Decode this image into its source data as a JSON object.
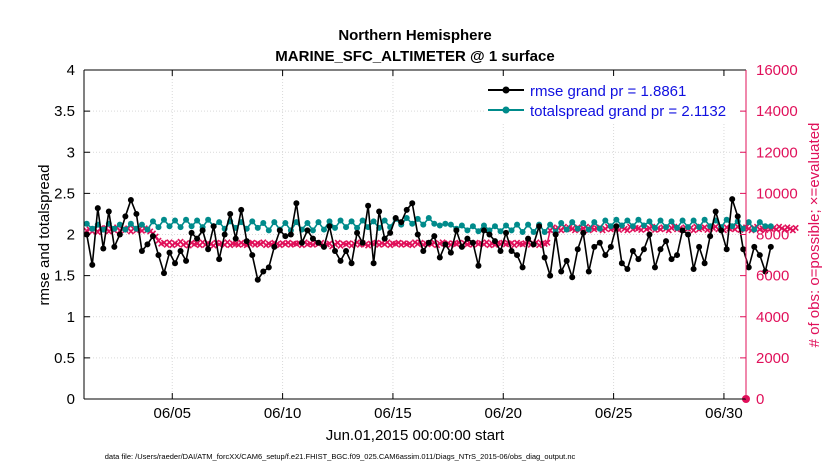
{
  "chart_data": {
    "type": "line",
    "title": "Northern Hemisphere",
    "subtitle": "MARINE_SFC_ALTIMETER @ 1 surface",
    "xlabel": "Jun.01,2015 00:00:00 start",
    "ylabel": "rmse and totalspread",
    "ylabel_right": "# of obs: o=possible; ×=evaluated",
    "footer": "data file: /Users/raeder/DAI/ATM_forcXX/CAM6_setup/f.e21.FHIST_BGC.f09_025.CAM6assim.011/Diags_NTrS_2015-06/obs_diag_output.nc",
    "x_ticks": [
      "06/05",
      "06/10",
      "06/15",
      "06/20",
      "06/25",
      "06/30"
    ],
    "x_tick_days": [
      5,
      10,
      15,
      20,
      25,
      30
    ],
    "xlim_days": [
      1,
      31
    ],
    "y_ticks": [
      "0",
      "0.5",
      "1",
      "1.5",
      "2",
      "2.5",
      "3",
      "3.5",
      "4"
    ],
    "ylim": [
      0,
      4
    ],
    "y2_ticks": [
      "0",
      "2000",
      "4000",
      "6000",
      "8000",
      "10000",
      "12000",
      "14000",
      "16000"
    ],
    "y2lim": [
      0,
      16000
    ],
    "grid": true,
    "legend_position": "top-right",
    "colors": {
      "rmse": "#000000",
      "spread": "#008b8b",
      "obs": "#e0105a"
    },
    "series": [
      {
        "name": "rmse grand pr = 1.8861",
        "key": "rmse",
        "start_day": 1.125,
        "step_day": 0.25,
        "values": [
          2.0,
          1.63,
          2.32,
          1.83,
          2.28,
          1.85,
          2.0,
          2.22,
          2.42,
          2.25,
          1.8,
          1.88,
          1.98,
          1.75,
          1.53,
          1.78,
          1.65,
          1.8,
          1.68,
          2.02,
          1.95,
          2.05,
          1.82,
          2.1,
          1.7,
          2.0,
          2.25,
          1.95,
          2.3,
          1.92,
          1.75,
          1.45,
          1.55,
          1.6,
          1.85,
          2.05,
          1.98,
          2.0,
          2.38,
          1.9,
          2.05,
          1.95,
          1.9,
          1.85,
          2.1,
          1.8,
          1.68,
          1.8,
          1.65,
          2.02,
          1.9,
          2.35,
          1.65,
          2.28,
          1.95,
          2.02,
          2.2,
          2.15,
          2.3,
          2.38,
          2.0,
          1.8,
          1.9,
          1.98,
          1.72,
          1.88,
          1.78,
          2.05,
          1.85,
          1.95,
          1.9,
          1.62,
          2.05,
          2.0,
          1.92,
          1.8,
          2.02,
          1.8,
          1.75,
          1.6,
          1.95,
          1.88,
          2.1,
          1.72,
          1.5,
          2.0,
          1.55,
          1.68,
          1.48,
          1.82,
          2.02,
          1.55,
          1.85,
          1.9,
          1.75,
          1.85,
          2.1,
          1.65,
          1.58,
          1.8,
          1.7,
          1.82,
          2.0,
          1.6,
          1.82,
          1.92,
          1.7,
          1.75,
          2.05,
          2.0,
          1.58,
          1.85,
          1.65,
          1.98,
          2.28,
          2.05,
          1.82,
          2.43,
          2.22,
          1.82,
          1.6,
          1.85,
          1.75,
          1.55,
          1.85
        ]
      },
      {
        "name": "totalspread grand pr = 2.1132",
        "key": "spread",
        "start_day": 1.125,
        "step_day": 0.25,
        "values": [
          2.13,
          2.07,
          2.12,
          2.06,
          2.13,
          2.07,
          2.12,
          2.06,
          2.13,
          2.07,
          2.12,
          2.06,
          2.16,
          2.09,
          2.18,
          2.1,
          2.17,
          2.09,
          2.18,
          2.1,
          2.17,
          2.09,
          2.18,
          2.1,
          2.15,
          2.07,
          2.16,
          2.08,
          2.15,
          2.07,
          2.16,
          2.08,
          2.14,
          2.05,
          2.15,
          2.06,
          2.14,
          2.05,
          2.15,
          2.06,
          2.14,
          2.05,
          2.15,
          2.06,
          2.16,
          2.08,
          2.17,
          2.09,
          2.16,
          2.08,
          2.17,
          2.09,
          2.16,
          2.08,
          2.17,
          2.09,
          2.19,
          2.12,
          2.2,
          2.13,
          2.19,
          2.12,
          2.2,
          2.13,
          2.11,
          2.13,
          2.12,
          2.07,
          2.11,
          2.05,
          2.1,
          2.04,
          2.11,
          2.05,
          2.1,
          2.04,
          2.11,
          2.05,
          2.12,
          2.03,
          2.12,
          2.03,
          2.12,
          2.03,
          2.12,
          2.03,
          2.14,
          2.06,
          2.15,
          2.07,
          2.14,
          2.06,
          2.15,
          2.07,
          2.17,
          2.1,
          2.18,
          2.11,
          2.17,
          2.1,
          2.18,
          2.11,
          2.16,
          2.08,
          2.17,
          2.09,
          2.16,
          2.08,
          2.17,
          2.09,
          2.17,
          2.09,
          2.18,
          2.1,
          2.17,
          2.09,
          2.18,
          2.1,
          2.16,
          2.07,
          2.15,
          2.06,
          2.15,
          2.1,
          2.1
        ]
      },
      {
        "name": "# of obs evaluated",
        "key": "obs",
        "start_day": 1.125,
        "step_day": 0.125,
        "values_y2": [
          8180,
          8250,
          8150,
          8280,
          8120,
          8300,
          8200,
          8320,
          8150,
          8260,
          8200,
          8350,
          8180,
          8250,
          8220,
          8300,
          8150,
          8280,
          8200,
          8250,
          8180,
          8300,
          8220,
          8150,
          8050,
          7900,
          7700,
          7550,
          7600,
          7500,
          7620,
          7480,
          7580,
          7520,
          7650,
          7500,
          7580,
          7460,
          7600,
          7520,
          7560,
          7480,
          7620,
          7500,
          7580,
          7540,
          7460,
          7600,
          7520,
          7580,
          7500,
          7620,
          7480,
          7560,
          7540,
          7500,
          7600,
          7520,
          7480,
          7560,
          7600,
          7500,
          7580,
          7540,
          7620,
          7480,
          7560,
          7520,
          7600,
          7540,
          7480,
          7580,
          7520,
          7600,
          7500,
          7560,
          7540,
          7580,
          7480,
          7620,
          7520,
          7560,
          7500,
          7580,
          7540,
          7600,
          7480,
          7520,
          7560,
          7420,
          7520,
          7600,
          7450,
          7560,
          7520,
          7580,
          7460,
          7550,
          7620,
          7500,
          7580,
          7520,
          7460,
          7560,
          7540,
          7600,
          7500,
          7580,
          7520,
          7620,
          7480,
          7560,
          7540,
          7600,
          7500,
          7580,
          7520,
          7560,
          7480,
          7620,
          7540,
          7600,
          7500,
          7560,
          7580,
          7520,
          7600,
          7480,
          7560,
          7620,
          7520,
          7580,
          7500,
          7560,
          7540,
          7600,
          7480,
          7580,
          7520,
          7560,
          7500,
          7600,
          7540,
          7580,
          7520,
          7620,
          7480,
          7560,
          7500,
          7580,
          7540,
          7600,
          7520,
          7560,
          7580,
          7480,
          7600,
          7540,
          7520,
          7580,
          7600,
          7500,
          7560,
          7620,
          7480,
          7560,
          7540,
          7600,
          8200,
          8350,
          8250,
          8300,
          8200,
          8380,
          8250,
          8320,
          8280,
          8200,
          8350,
          8250,
          8300,
          8380,
          8200,
          8320,
          8250,
          8300,
          8350,
          8200,
          8280,
          8380,
          8250,
          8300,
          8320,
          8220,
          8350,
          8280,
          8200,
          8380,
          8250,
          8320,
          8300,
          8220,
          8350,
          8260,
          8300,
          8380,
          8220,
          8300,
          8250,
          8350,
          8280,
          8200,
          8320,
          8380,
          8250,
          8300,
          8220,
          8350,
          8280,
          8320,
          8200,
          8380,
          8250,
          8300,
          8350,
          8220,
          8280,
          8320,
          8380,
          8250,
          8300,
          8200,
          8350,
          8280,
          8320,
          8250,
          8380,
          8220,
          8300,
          8350,
          8280,
          8200,
          8320,
          8380,
          8250,
          8300,
          8220,
          8350,
          8280,
          8320,
          8250,
          8380,
          8300,
          8220,
          8350,
          8280,
          8200,
          8320
        ]
      }
    ]
  }
}
